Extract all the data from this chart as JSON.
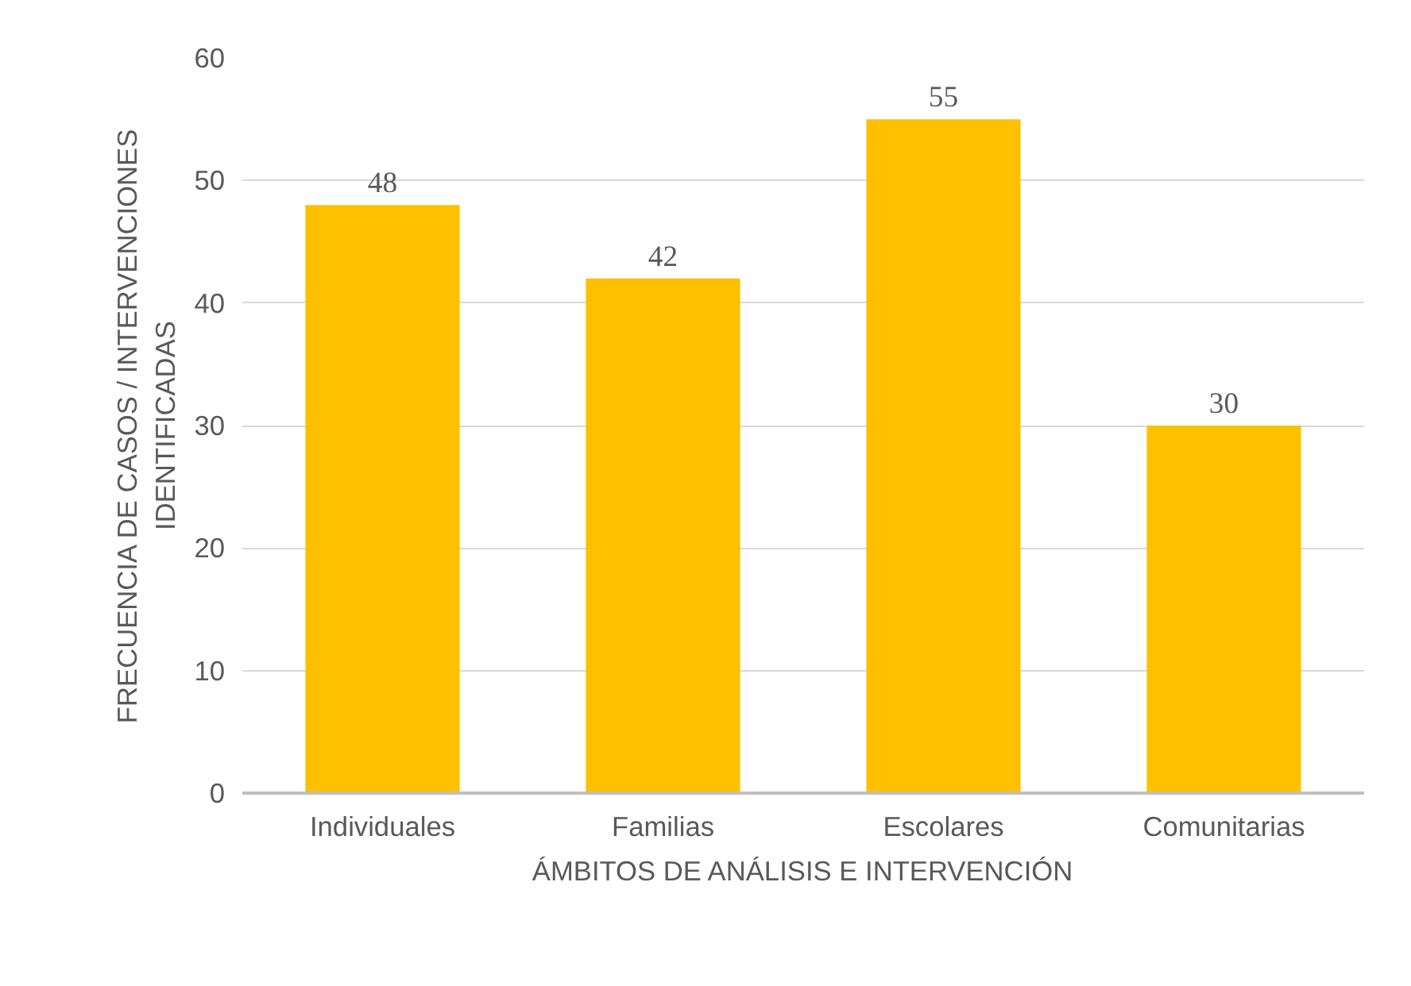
{
  "chart_data": {
    "type": "bar",
    "xlabel": "ÁMBITOS DE ANÁLISIS E INTERVENCIÓN",
    "ylabel": "FRECUENCIA DE CASOS / INTERVENCIONES IDENTIFICADAS",
    "categories": [
      "Individuales",
      "Familias",
      "Escolares",
      "Comunitarias"
    ],
    "values": [
      48,
      42,
      55,
      30
    ],
    "color": "#ffc000",
    "ylim": [
      0,
      60
    ],
    "yticks": [
      0,
      10,
      20,
      30,
      40,
      50,
      60
    ],
    "grid": "y",
    "data_labels": true
  }
}
